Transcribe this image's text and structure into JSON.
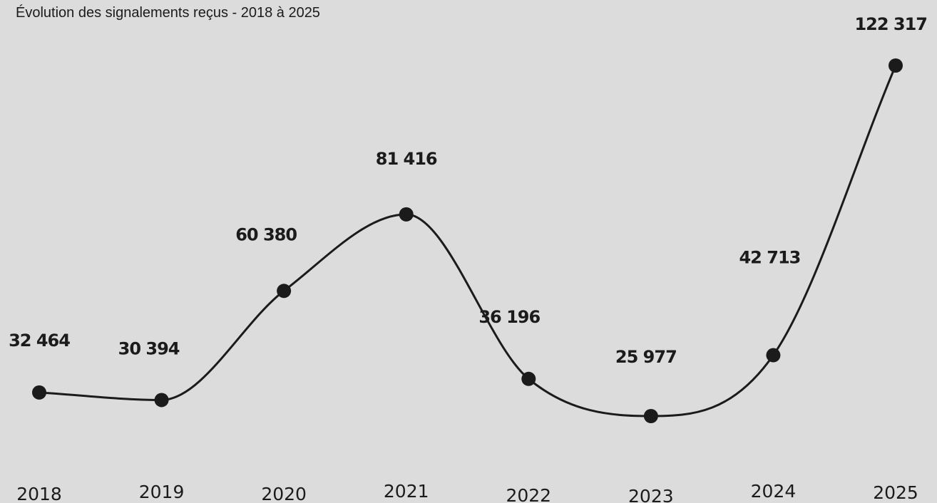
{
  "chart_data": {
    "type": "line",
    "title": "Évolution des signalements reçus - 2018 à 2025",
    "xlabel": "",
    "ylabel": "",
    "categories": [
      "2018",
      "2019",
      "2020",
      "2021",
      "2022",
      "2023",
      "2024",
      "2025"
    ],
    "values": [
      32464,
      30394,
      60380,
      81416,
      36196,
      25977,
      42713,
      122317
    ],
    "value_labels": [
      "32 464",
      "30 394",
      "60 380",
      "81 416",
      "36 196",
      "25 977",
      "42 713",
      "122 317"
    ],
    "ylim": [
      0,
      130000
    ],
    "grid": false,
    "legend": "none",
    "smooth": true,
    "colors": {
      "background": "#dcdcdc",
      "line": "#1b1b1b",
      "text": "#1b1b1b"
    }
  }
}
